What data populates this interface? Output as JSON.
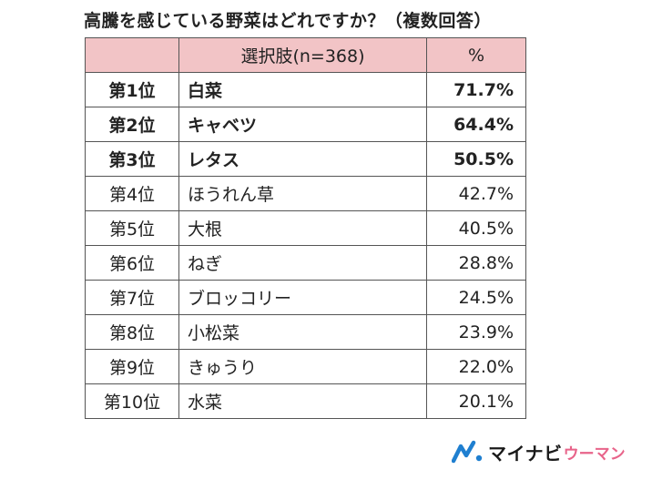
{
  "title": "高騰を感じている野菜はどれですか？（複数回答）",
  "table": {
    "header": {
      "item": "選択肢(n=368)",
      "percent": "%"
    }
  },
  "chart_data": {
    "type": "table",
    "title": "高騰を感じている野菜はどれですか？（複数回答）",
    "columns": [
      "",
      "選択肢(n=368)",
      "%"
    ],
    "rows": [
      {
        "rank": "第1位",
        "item": "白菜",
        "percent": "71.7%",
        "value": 71.7
      },
      {
        "rank": "第2位",
        "item": "キャベツ",
        "percent": "64.4%",
        "value": 64.4
      },
      {
        "rank": "第3位",
        "item": "レタス",
        "percent": "50.5%",
        "value": 50.5
      },
      {
        "rank": "第4位",
        "item": "ほうれん草",
        "percent": "42.7%",
        "value": 42.7
      },
      {
        "rank": "第5位",
        "item": "大根",
        "percent": "40.5%",
        "value": 40.5
      },
      {
        "rank": "第6位",
        "item": "ねぎ",
        "percent": "28.8%",
        "value": 28.8
      },
      {
        "rank": "第7位",
        "item": "ブロッコリー",
        "percent": "24.5%",
        "value": 24.5
      },
      {
        "rank": "第8位",
        "item": "小松菜",
        "percent": "23.9%",
        "value": 23.9
      },
      {
        "rank": "第9位",
        "item": "きゅうり",
        "percent": "22.0%",
        "value": 22.0
      },
      {
        "rank": "第10位",
        "item": "水菜",
        "percent": "20.1%",
        "value": 20.1
      }
    ],
    "highlight_top": 3
  },
  "colors": {
    "header_bg": "#f2c4c6",
    "brand_pink": "#e8648a",
    "brand_blue": "#1f7fd0"
  },
  "logo": {
    "main": "マイナビ",
    "sub": "ウーマン",
    "icon": "mynavi-logo-icon"
  }
}
